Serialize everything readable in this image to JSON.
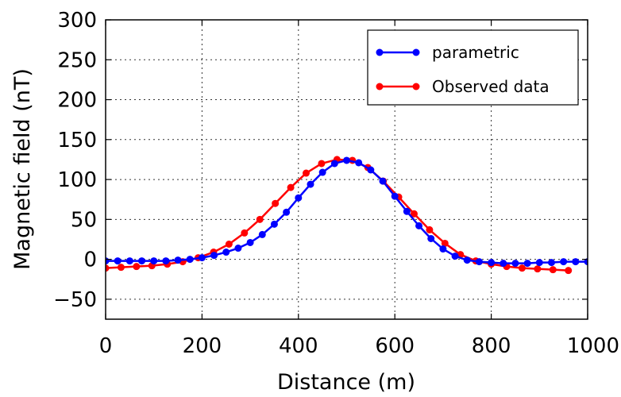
{
  "chart_data": {
    "type": "line",
    "title": "",
    "xlabel": "Distance (m)",
    "ylabel": "Magnetic field (nT)",
    "xlim": [
      0,
      1000
    ],
    "ylim": [
      -75,
      300
    ],
    "xticks": [
      0,
      200,
      400,
      600,
      800,
      1000
    ],
    "yticks": [
      -50,
      0,
      50,
      100,
      150,
      200,
      250,
      300
    ],
    "grid": true,
    "legend_position": "top-right",
    "series": [
      {
        "name": "parametric",
        "color": "#0000ff",
        "x": [
          0,
          25,
          50,
          75,
          100,
          125,
          150,
          175,
          200,
          225,
          250,
          275,
          300,
          325,
          350,
          375,
          400,
          425,
          450,
          475,
          500,
          525,
          550,
          575,
          600,
          625,
          650,
          675,
          700,
          725,
          750,
          775,
          800,
          825,
          850,
          875,
          900,
          925,
          950,
          975,
          1000
        ],
        "y": [
          -2,
          -2,
          -2,
          -2,
          -2,
          -2,
          -1,
          0,
          2,
          5,
          9,
          14,
          21,
          31,
          44,
          59,
          77,
          94,
          109,
          120,
          124,
          121,
          112,
          98,
          79,
          60,
          42,
          26,
          13,
          4,
          -1,
          -3,
          -4,
          -5,
          -5,
          -5,
          -4,
          -4,
          -3,
          -3,
          -3
        ]
      },
      {
        "name": "Observed data",
        "color": "#ff0000",
        "x": [
          0,
          32,
          64,
          96,
          128,
          160,
          192,
          224,
          256,
          288,
          320,
          352,
          384,
          416,
          448,
          480,
          512,
          544,
          576,
          608,
          640,
          672,
          704,
          736,
          768,
          800,
          832,
          864,
          896,
          928,
          960
        ],
        "y": [
          -11,
          -10,
          -9,
          -8,
          -6,
          -3,
          2,
          9,
          19,
          33,
          50,
          70,
          90,
          108,
          120,
          125,
          124,
          115,
          98,
          78,
          57,
          37,
          20,
          6,
          -2,
          -6,
          -9,
          -11,
          -12,
          -13,
          -14
        ]
      }
    ]
  }
}
